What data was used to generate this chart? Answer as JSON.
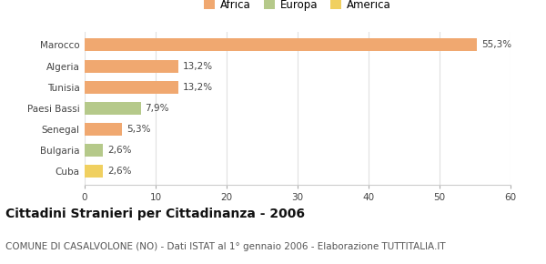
{
  "categories": [
    "Cuba",
    "Bulgaria",
    "Senegal",
    "Paesi Bassi",
    "Tunisia",
    "Algeria",
    "Marocco"
  ],
  "values": [
    2.6,
    2.6,
    5.3,
    7.9,
    13.2,
    13.2,
    55.3
  ],
  "labels": [
    "2,6%",
    "2,6%",
    "5,3%",
    "7,9%",
    "13,2%",
    "13,2%",
    "55,3%"
  ],
  "colors": [
    "#f0d060",
    "#b5c98a",
    "#f0a870",
    "#b5c98a",
    "#f0a870",
    "#f0a870",
    "#f0a870"
  ],
  "legend": [
    {
      "label": "Africa",
      "color": "#f0a870"
    },
    {
      "label": "Europa",
      "color": "#b5c98a"
    },
    {
      "label": "America",
      "color": "#f0d060"
    }
  ],
  "xlim": [
    0,
    60
  ],
  "xticks": [
    0,
    10,
    20,
    30,
    40,
    50,
    60
  ],
  "title": "Cittadini Stranieri per Cittadinanza - 2006",
  "subtitle": "COMUNE DI CASALVOLONE (NO) - Dati ISTAT al 1° gennaio 2006 - Elaborazione TUTTITALIA.IT",
  "title_fontsize": 10,
  "subtitle_fontsize": 7.5,
  "background_color": "#ffffff",
  "bar_height": 0.6,
  "grid_color": "#e0e0e0"
}
